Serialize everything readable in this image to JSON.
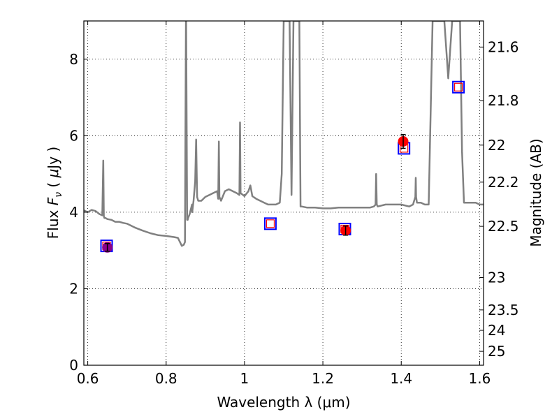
{
  "chart_data": {
    "type": "line",
    "xlabel": "Wavelength  λ (μm)",
    "ylabel_left": {
      "prefix": "Flux ",
      "var": "F",
      "sub": "ν",
      "mid": " ( ",
      "mu": "μ",
      "suffix": "Jy )"
    },
    "ylabel_right": "Magnitude (AB)",
    "xlim": [
      0.59,
      1.61
    ],
    "ylim": [
      0,
      9
    ],
    "grid": true,
    "x_ticks": [
      {
        "value": 0.6,
        "label": "0.6"
      },
      {
        "value": 0.8,
        "label": "0.8"
      },
      {
        "value": 1.0,
        "label": "1"
      },
      {
        "value": 1.2,
        "label": "1.2"
      },
      {
        "value": 1.4,
        "label": "1.4"
      },
      {
        "value": 1.6,
        "label": "1.6"
      }
    ],
    "y_ticks": [
      {
        "value": 0,
        "label": "0"
      },
      {
        "value": 2,
        "label": "2"
      },
      {
        "value": 4,
        "label": "4"
      },
      {
        "value": 6,
        "label": "6"
      },
      {
        "value": 8,
        "label": "8"
      }
    ],
    "y2_ticks": [
      {
        "value": 21.6,
        "label": "21.6"
      },
      {
        "value": 21.8,
        "label": "21.8"
      },
      {
        "value": 22.0,
        "label": "22"
      },
      {
        "value": 22.2,
        "label": "22.2"
      },
      {
        "value": 22.5,
        "label": "22.5"
      },
      {
        "value": 23.0,
        "label": "23"
      },
      {
        "value": 23.5,
        "label": "23.5"
      },
      {
        "value": 24.0,
        "label": "24"
      },
      {
        "value": 25.0,
        "label": "25"
      }
    ],
    "colors": {
      "model": "#808080",
      "model_photometry_box": "#0000ff",
      "inner_box": "#ff0000",
      "observed_red": "#ff0000",
      "observed_purple": "#8b008b",
      "grid": "#000000"
    },
    "model_spectrum": {
      "x": [
        0.59,
        0.6,
        0.61,
        0.62,
        0.63,
        0.637,
        0.6395,
        0.641,
        0.6425,
        0.645,
        0.65,
        0.66,
        0.67,
        0.68,
        0.69,
        0.7,
        0.72,
        0.74,
        0.76,
        0.78,
        0.8,
        0.82,
        0.83,
        0.84,
        0.845,
        0.848,
        0.8505,
        0.851,
        0.8535,
        0.855,
        0.856,
        0.86,
        0.866,
        0.8665,
        0.87,
        0.874,
        0.8765,
        0.879,
        0.882,
        0.89,
        0.9,
        0.91,
        0.92,
        0.93,
        0.933,
        0.9345,
        0.936,
        0.94,
        0.95,
        0.96,
        0.97,
        0.98,
        0.987,
        0.9885,
        0.99,
        1.0,
        1.01,
        1.015,
        1.02,
        1.03,
        1.04,
        1.05,
        1.06,
        1.07,
        1.08,
        1.09,
        1.095,
        1.1,
        1.11,
        1.115,
        1.12,
        1.125,
        1.13,
        1.135,
        1.14,
        1.143,
        1.146,
        1.16,
        1.18,
        1.2,
        1.22,
        1.24,
        1.26,
        1.28,
        1.3,
        1.32,
        1.33,
        1.3345,
        1.336,
        1.3375,
        1.34,
        1.36,
        1.38,
        1.4,
        1.42,
        1.43,
        1.436,
        1.437,
        1.438,
        1.44,
        1.45,
        1.46,
        1.47,
        1.48,
        1.49,
        1.5,
        1.51,
        1.52,
        1.53,
        1.54,
        1.55,
        1.555,
        1.56,
        1.57,
        1.58,
        1.59,
        1.6,
        1.61
      ],
      "y": [
        4.05,
        4.0,
        4.06,
        4.03,
        3.95,
        3.92,
        5.35,
        3.9,
        3.85,
        3.85,
        3.82,
        3.8,
        3.75,
        3.75,
        3.72,
        3.7,
        3.6,
        3.52,
        3.45,
        3.4,
        3.38,
        3.35,
        3.33,
        3.12,
        3.15,
        3.22,
        9.0,
        9.0,
        3.8,
        3.8,
        3.85,
        3.95,
        4.2,
        4.0,
        4.3,
        4.8,
        5.9,
        4.4,
        4.3,
        4.3,
        4.4,
        4.45,
        4.5,
        4.55,
        4.35,
        5.85,
        4.4,
        4.3,
        4.55,
        4.6,
        4.55,
        4.5,
        4.45,
        6.35,
        4.5,
        4.42,
        4.55,
        4.7,
        4.42,
        4.35,
        4.3,
        4.25,
        4.2,
        4.2,
        4.2,
        4.25,
        5.0,
        9.0,
        9.0,
        9.0,
        4.45,
        9.0,
        9.0,
        9.0,
        9.0,
        4.15,
        4.15,
        4.12,
        4.12,
        4.1,
        4.1,
        4.12,
        4.12,
        4.12,
        4.12,
        4.12,
        4.15,
        4.2,
        5.0,
        4.2,
        4.15,
        4.2,
        4.2,
        4.2,
        4.15,
        4.2,
        4.4,
        4.9,
        4.4,
        4.25,
        4.25,
        4.2,
        4.2,
        9.0,
        9.0,
        9.0,
        9.0,
        7.5,
        9.0,
        9.0,
        9.0,
        5.6,
        4.25,
        4.25,
        4.25,
        4.25,
        4.2,
        4.2
      ]
    },
    "model_photometry": [
      {
        "x": 0.648,
        "y": 3.12
      },
      {
        "x": 1.066,
        "y": 3.7
      },
      {
        "x": 1.256,
        "y": 3.56
      },
      {
        "x": 1.407,
        "y": 5.67
      },
      {
        "x": 1.546,
        "y": 7.27
      }
    ],
    "observed_photometry": [
      {
        "x": 0.65,
        "y": 3.08,
        "err": 0.1,
        "color": "purple"
      },
      {
        "x": 1.258,
        "y": 3.52,
        "err": 0.12,
        "color": "red"
      },
      {
        "x": 1.405,
        "y": 5.85,
        "err": 0.18,
        "color": "red"
      }
    ]
  }
}
